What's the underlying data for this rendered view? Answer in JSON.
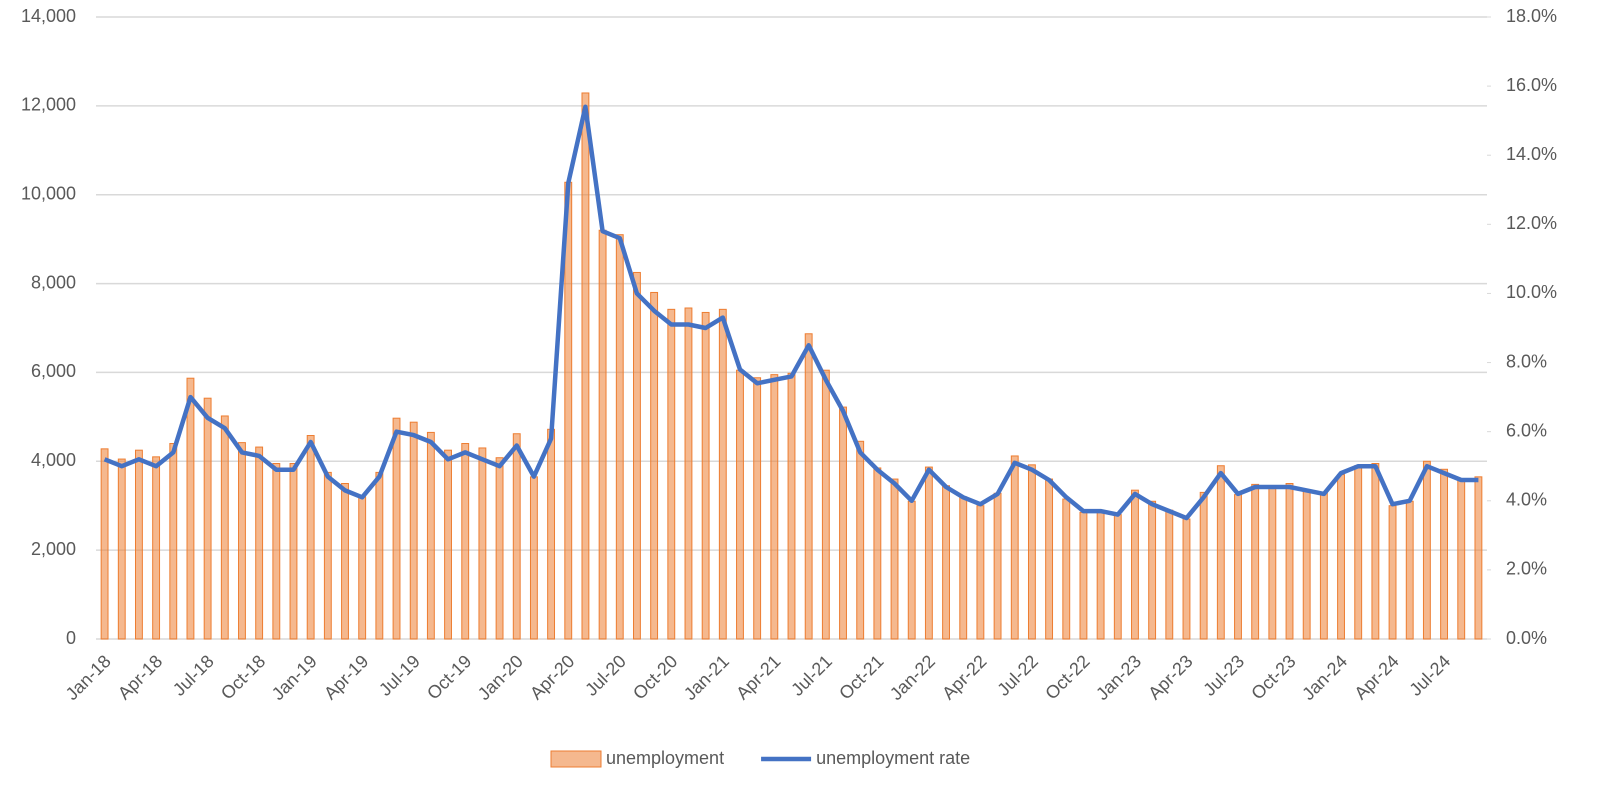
{
  "chart_data": {
    "type": "combo",
    "categories": [
      "Jan-18",
      null,
      null,
      "Apr-18",
      null,
      null,
      "Jul-18",
      null,
      null,
      "Oct-18",
      null,
      null,
      "Jan-19",
      null,
      null,
      "Apr-19",
      null,
      null,
      "Jul-19",
      null,
      null,
      "Oct-19",
      null,
      null,
      "Jan-20",
      null,
      null,
      "Apr-20",
      null,
      null,
      "Jul-20",
      null,
      null,
      "Oct-20",
      null,
      null,
      "Jan-21",
      null,
      null,
      "Apr-21",
      null,
      null,
      "Jul-21",
      null,
      null,
      "Oct-21",
      null,
      null,
      "Jan-22",
      null,
      null,
      "Apr-22",
      null,
      null,
      "Jul-22",
      null,
      null,
      "Oct-22",
      null,
      null,
      "Jan-23",
      null,
      null,
      "Apr-23",
      null,
      null,
      "Jul-23",
      null,
      null,
      "Oct-23",
      null,
      null,
      "Jan-24",
      null,
      null,
      "Apr-24",
      null,
      null,
      "Jul-24",
      null,
      null
    ],
    "series": [
      {
        "name": "unemployment",
        "type": "bar",
        "color": "#ed7d31",
        "values": [
          4280,
          4050,
          4250,
          4100,
          4400,
          5870,
          5420,
          5020,
          4420,
          4320,
          3950,
          3950,
          4580,
          3750,
          3500,
          3200,
          3750,
          4970,
          4880,
          4650,
          4250,
          4400,
          4300,
          4080,
          4620,
          3650,
          4720,
          10280,
          12290,
          9200,
          9100,
          8250,
          7800,
          7420,
          7450,
          7350,
          7420,
          6050,
          5880,
          5950,
          5980,
          6870,
          6050,
          5220,
          4450,
          3850,
          3600,
          3100,
          3870,
          3450,
          3200,
          3000,
          3280,
          4120,
          3920,
          3600,
          3150,
          2850,
          2900,
          2800,
          3350,
          3100,
          2900,
          2700,
          3300,
          3900,
          3250,
          3480,
          3450,
          3500,
          3350,
          3300,
          3700,
          3900,
          3950,
          3000,
          3100,
          4000,
          3820,
          3600,
          3650
        ]
      },
      {
        "name": "unemployment rate",
        "type": "line",
        "color": "#4472c4",
        "axis": "y2",
        "values": [
          5.2,
          5.0,
          5.2,
          5.0,
          5.4,
          7.0,
          6.4,
          6.1,
          5.4,
          5.3,
          4.9,
          4.9,
          5.7,
          4.7,
          4.3,
          4.1,
          4.7,
          6.0,
          5.9,
          5.7,
          5.2,
          5.4,
          5.2,
          5.0,
          5.6,
          4.7,
          5.8,
          13.2,
          15.4,
          11.8,
          11.6,
          10.0,
          9.5,
          9.1,
          9.1,
          9.0,
          9.3,
          7.8,
          7.4,
          7.5,
          7.6,
          8.5,
          7.5,
          6.6,
          5.4,
          4.9,
          4.5,
          4.0,
          4.9,
          4.4,
          4.1,
          3.9,
          4.2,
          5.1,
          4.9,
          4.6,
          4.1,
          3.7,
          3.7,
          3.6,
          4.2,
          3.9,
          3.7,
          3.5,
          4.1,
          4.8,
          4.2,
          4.4,
          4.4,
          4.4,
          4.3,
          4.2,
          4.8,
          5.0,
          5.0,
          3.9,
          4.0,
          5.0,
          4.8,
          4.6,
          4.6
        ]
      }
    ],
    "ylim": [
      0,
      14000
    ],
    "yticks": [
      0,
      {
        "value": 2000,
        "label": "2,000"
      },
      {
        "value": 4000,
        "label": "4,000"
      },
      {
        "value": 6000,
        "label": "6,000"
      },
      {
        "value": 8000,
        "label": "8,000"
      },
      {
        "value": 10000,
        "label": "10,000"
      },
      {
        "value": 12000,
        "label": "12,000"
      },
      {
        "value": 14000,
        "label": "14,000"
      }
    ],
    "y2lim": [
      0,
      18
    ],
    "y2ticks": [
      {
        "value": 0,
        "label": "0.0%"
      },
      {
        "value": 2,
        "label": "2.0%"
      },
      {
        "value": 4,
        "label": "4.0%"
      },
      {
        "value": 6,
        "label": "6.0%"
      },
      {
        "value": 8,
        "label": "8.0%"
      },
      {
        "value": 10,
        "label": "10.0%"
      },
      {
        "value": 12,
        "label": "12.0%"
      },
      {
        "value": 14,
        "label": "14.0%"
      },
      {
        "value": 16,
        "label": "16.0%"
      },
      {
        "value": 18,
        "label": "18.0%"
      }
    ],
    "grid": true,
    "legend": "bottom"
  }
}
